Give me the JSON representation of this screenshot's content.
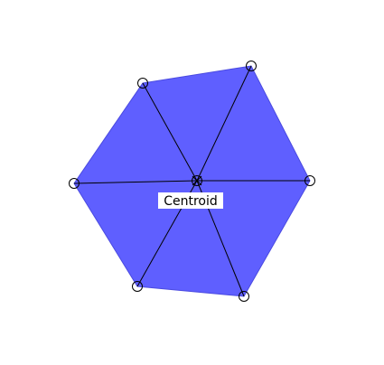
{
  "colors": {
    "polygon_fill": "#5f5fff",
    "polygon_edge": "#4a4ae0",
    "line": "#000000",
    "background": "#ffffff"
  },
  "shape": "hexagon",
  "vertex_count": 6,
  "centroid_label": "Centroid"
}
